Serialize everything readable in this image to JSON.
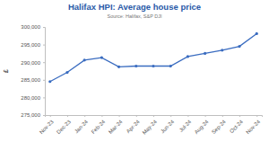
{
  "chart_data": {
    "type": "line",
    "title": "Halifax HPI: Average house price",
    "subtitle": "Source: Halifax, S&P DJI",
    "ylabel": "£",
    "categories": [
      "Nov-23",
      "Dec-23",
      "Jan-24",
      "Feb-24",
      "Mar-24",
      "Apr-24",
      "May-24",
      "Jun-24",
      "Jul-24",
      "Aug-24",
      "Sep-24",
      "Oct-24",
      "Nov-24"
    ],
    "values": [
      284500,
      287100,
      290600,
      291300,
      288700,
      288900,
      288900,
      288900,
      291600,
      292500,
      293400,
      294500,
      298100
    ],
    "color": "#3a6cc0",
    "marker": "circle",
    "grid": false,
    "ylim": [
      275000,
      300000
    ],
    "yticks": [
      {
        "value": 275000,
        "label": "275,000"
      },
      {
        "value": 280000,
        "label": "280,000"
      },
      {
        "value": 285000,
        "label": "285,000"
      },
      {
        "value": 290000,
        "label": "290,000"
      },
      {
        "value": 295000,
        "label": "295,000"
      },
      {
        "value": 300000,
        "label": "300,000"
      }
    ]
  }
}
